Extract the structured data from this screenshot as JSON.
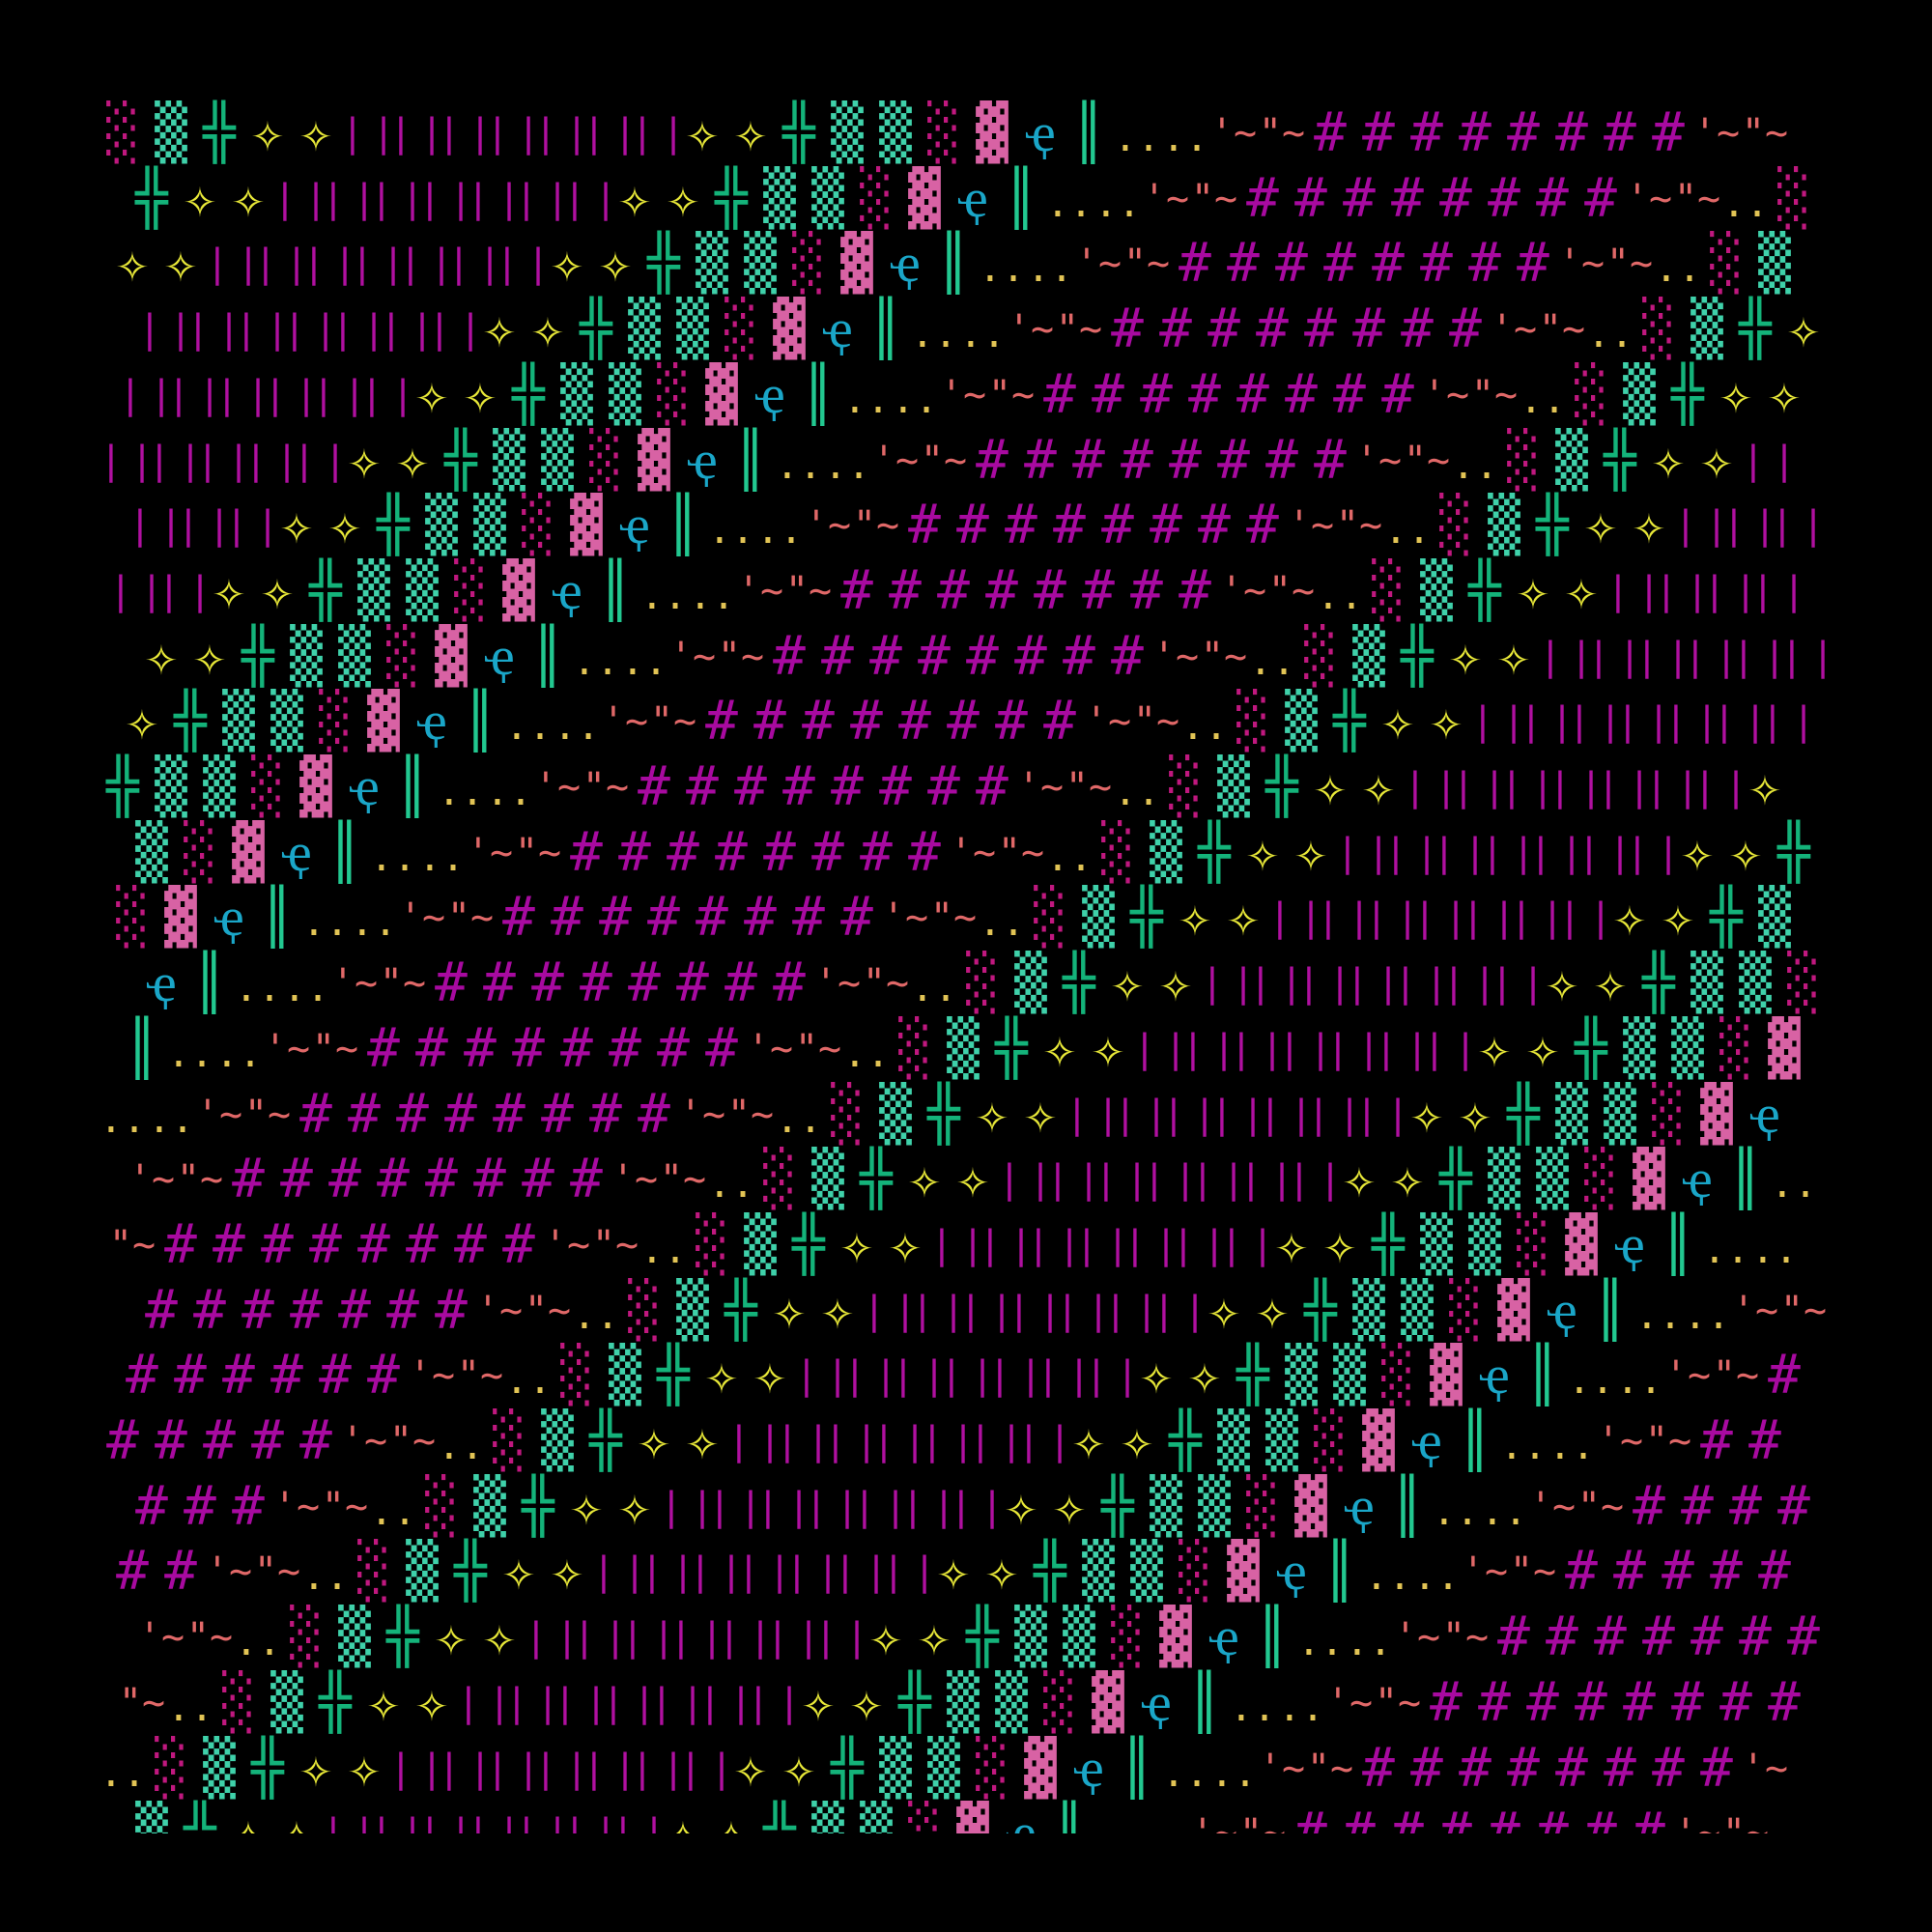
{
  "background": "#000000",
  "glyphs": {
    "shade-light": {
      "char": "░",
      "color": "#c0187f"
    },
    "shade-medium": {
      "char": "▒",
      "color": "#3fd1aa"
    },
    "double-cross": {
      "char": "╬",
      "color": "#14b37a"
    },
    "star": {
      "char": "✧",
      "color": "#e8e838"
    },
    "bars": {
      "char": "| |",
      "color": "#b010a0"
    },
    "shade-dark": {
      "char": "▓",
      "color": "#d862a4"
    },
    "eye": {
      "char": "ҿ",
      "color": "#1aa6c8"
    },
    "double-bar": {
      "char": "║",
      "color": "#22c890"
    },
    "dots": {
      "char": "..",
      "color": "#e2c455"
    },
    "tilde-quote": {
      "char": "'~",
      "color": "#e06868"
    },
    "quote-tilde": {
      "char": "\"~",
      "color": "#e06868"
    },
    "quote": {
      "char": "'",
      "color": "#e06868"
    },
    "hash": {
      "char": "#",
      "color": "#a80aa0"
    }
  },
  "cycle": [
    "shade-light",
    "shade-medium",
    "double-cross",
    "star",
    "star",
    "bars",
    "bars",
    "bars",
    "bars",
    "bars",
    "bars",
    "bars",
    "star",
    "star",
    "double-cross",
    "shade-medium",
    "shade-medium",
    "shade-light",
    "shade-dark",
    "eye",
    "double-bar",
    "dots",
    "dots",
    "tilde-quote",
    "quote-tilde",
    "hash",
    "hash",
    "hash",
    "hash",
    "hash",
    "hash",
    "hash",
    "hash",
    "tilde-quote",
    "quote-tilde",
    "dots"
  ]
}
